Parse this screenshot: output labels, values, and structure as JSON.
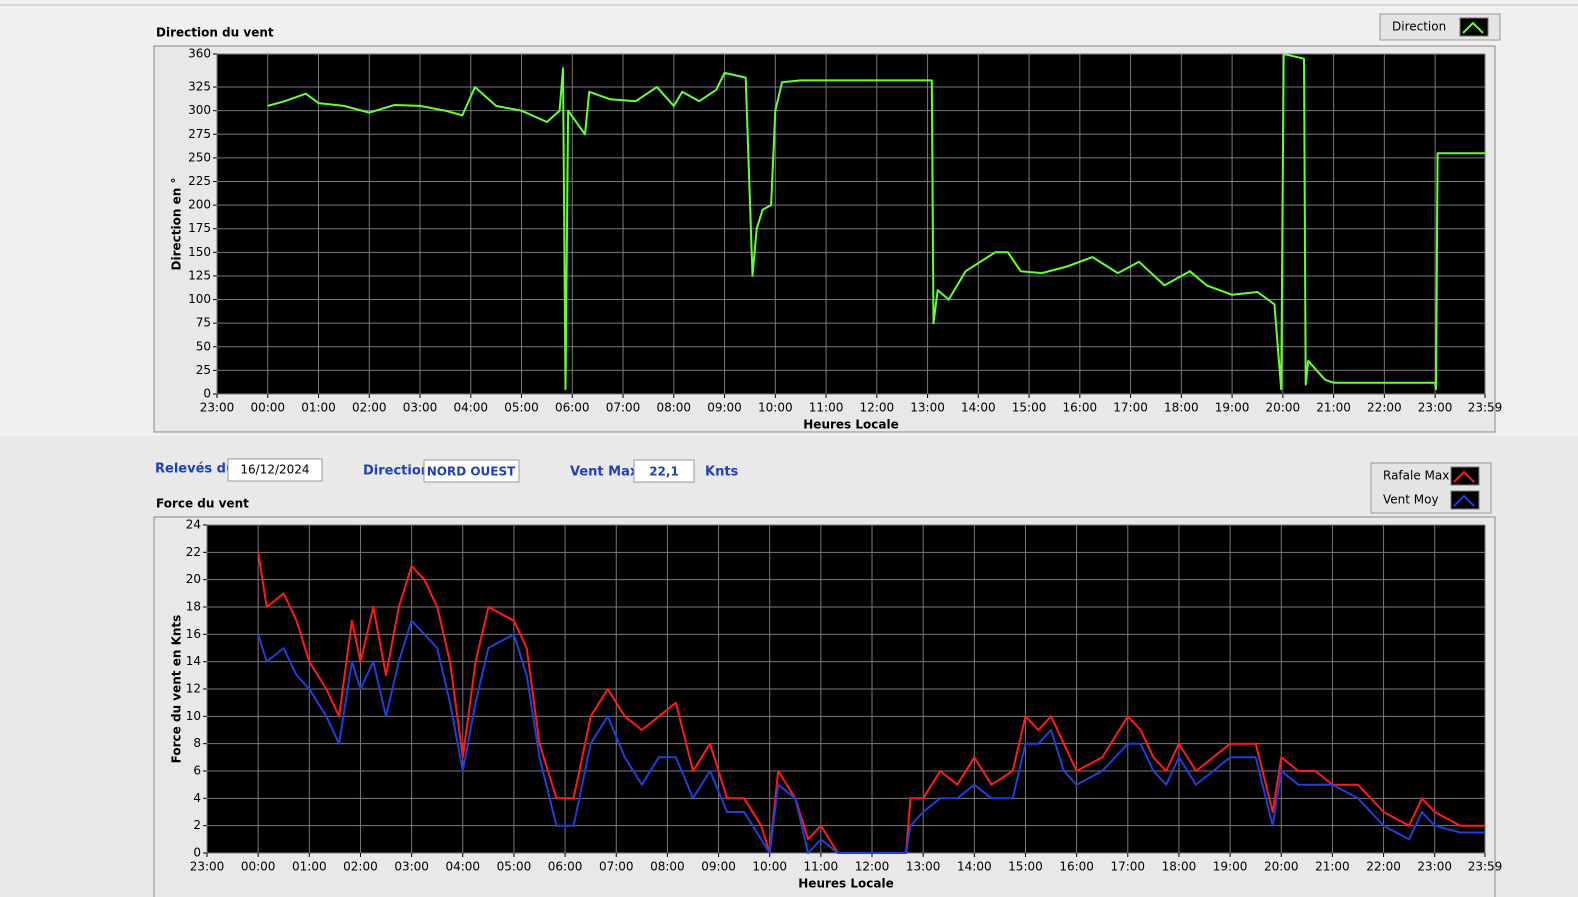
{
  "chart_data": [
    {
      "type": "line",
      "title": "Direction du vent",
      "y_label": "Direction en °",
      "x_label": "Heures Locale",
      "x": [
        1,
        1.333,
        1.75,
        2,
        2.5,
        3,
        3.5,
        4,
        4.5,
        4.833,
        5.083,
        5.5,
        6,
        6.5,
        6.75,
        6.817,
        6.867,
        6.917,
        7.25,
        7.333,
        7.75,
        8.25,
        8.667,
        9,
        9.167,
        9.5,
        9.833,
        10,
        10.417,
        10.55,
        10.633,
        10.75,
        10.917,
        11,
        11.133,
        11.5,
        14.083,
        14.117,
        14.2,
        14.417,
        14.75,
        15.333,
        15.583,
        15.833,
        16.25,
        16.75,
        17.25,
        17.75,
        18.167,
        18.667,
        19.167,
        19.5,
        20,
        20.5,
        20.833,
        20.967,
        21.017,
        21.417,
        21.45,
        21.5,
        21.833,
        22,
        24,
        24.017,
        24.05,
        24.983
      ],
      "series": [
        {
          "name": "Direction",
          "color": "#66ff33",
          "values": [
            305,
            310,
            318,
            308,
            305,
            298,
            306,
            305,
            300,
            295,
            325,
            305,
            300,
            288,
            300,
            345,
            5,
            300,
            275,
            320,
            312,
            310,
            325,
            305,
            320,
            310,
            322,
            340,
            335,
            125,
            175,
            195,
            200,
            300,
            330,
            332,
            332,
            75,
            110,
            100,
            130,
            150,
            150,
            130,
            128,
            135,
            145,
            128,
            140,
            115,
            130,
            115,
            105,
            108,
            95,
            5,
            360,
            355,
            10,
            35,
            15,
            12,
            12,
            5,
            255,
            255
          ]
        }
      ],
      "xlim": [
        0,
        24.983
      ],
      "xticks": [
        {
          "value": 0,
          "label": "23:00"
        },
        {
          "value": 1,
          "label": "00:00"
        },
        {
          "value": 2,
          "label": "01:00"
        },
        {
          "value": 3,
          "label": "02:00"
        },
        {
          "value": 4,
          "label": "03:00"
        },
        {
          "value": 5,
          "label": "04:00"
        },
        {
          "value": 6,
          "label": "05:00"
        },
        {
          "value": 7,
          "label": "06:00"
        },
        {
          "value": 8,
          "label": "07:00"
        },
        {
          "value": 9,
          "label": "08:00"
        },
        {
          "value": 10,
          "label": "09:00"
        },
        {
          "value": 11,
          "label": "10:00"
        },
        {
          "value": 12,
          "label": "11:00"
        },
        {
          "value": 13,
          "label": "12:00"
        },
        {
          "value": 14,
          "label": "13:00"
        },
        {
          "value": 15,
          "label": "14:00"
        },
        {
          "value": 16,
          "label": "15:00"
        },
        {
          "value": 17,
          "label": "16:00"
        },
        {
          "value": 18,
          "label": "17:00"
        },
        {
          "value": 19,
          "label": "18:00"
        },
        {
          "value": 20,
          "label": "19:00"
        },
        {
          "value": 21,
          "label": "20:00"
        },
        {
          "value": 22,
          "label": "21:00"
        },
        {
          "value": 23,
          "label": "22:00"
        },
        {
          "value": 24,
          "label": "23:00"
        },
        {
          "value": 24.983,
          "label": "23:59"
        }
      ],
      "ylim": [
        0,
        360
      ],
      "yticks": [
        0,
        25,
        50,
        75,
        100,
        125,
        150,
        175,
        200,
        225,
        250,
        275,
        300,
        325,
        360
      ],
      "grid": true
    },
    {
      "type": "line",
      "title": "Force du vent",
      "y_label": "Force du vent en Knts",
      "x_label": "Heures Locale",
      "x": [
        1,
        1.167,
        1.5,
        1.75,
        2,
        2.333,
        2.583,
        2.833,
        3,
        3.25,
        3.5,
        3.75,
        4,
        4.25,
        4.5,
        4.75,
        5,
        5.25,
        5.5,
        6,
        6.25,
        6.5,
        6.833,
        7.167,
        7.5,
        7.833,
        8.167,
        8.5,
        8.833,
        9.167,
        9.5,
        9.833,
        10.167,
        10.5,
        10.833,
        11,
        11.167,
        11.5,
        11.75,
        12,
        12.333,
        13.667,
        13.75,
        14,
        14.333,
        14.667,
        15,
        15.333,
        15.75,
        16,
        16.25,
        16.5,
        16.75,
        17,
        17.5,
        18,
        18.25,
        18.5,
        18.75,
        19,
        19.333,
        19.667,
        20,
        20.5,
        20.833,
        21,
        21.333,
        21.667,
        22,
        22.5,
        23,
        23.5,
        23.75,
        24,
        24.5,
        24.983
      ],
      "series": [
        {
          "name": "Rafale Max",
          "color": "#ff1a1a",
          "values": [
            22,
            18,
            19,
            17,
            14,
            12,
            10,
            17,
            14,
            18,
            13,
            18,
            21,
            20,
            18,
            14,
            7,
            14,
            18,
            17,
            15,
            8,
            4,
            4,
            10,
            12,
            10,
            9,
            10,
            11,
            6,
            8,
            4,
            4,
            2,
            0,
            6,
            4,
            1,
            2,
            0,
            0,
            4,
            4,
            6,
            5,
            7,
            5,
            6,
            10,
            9,
            10,
            8,
            6,
            7,
            10,
            9,
            7,
            6,
            8,
            6,
            7,
            8,
            8,
            3,
            7,
            6,
            6,
            5,
            5,
            3,
            2,
            4,
            3,
            2,
            2
          ]
        },
        {
          "name": "Vent Moy",
          "color": "#1f3fd6",
          "values": [
            16,
            14,
            15,
            13,
            12,
            10,
            8,
            14,
            12,
            14,
            10,
            14,
            17,
            16,
            15,
            11,
            6,
            11,
            15,
            16,
            13,
            7,
            2,
            2,
            8,
            10,
            7,
            5,
            7,
            7,
            4,
            6,
            3,
            3,
            1,
            0,
            5,
            4,
            0,
            1,
            0,
            0,
            2,
            3,
            4,
            4,
            5,
            4,
            4,
            8,
            8,
            9,
            6,
            5,
            6,
            8,
            8,
            6,
            5,
            7,
            5,
            6,
            7,
            7,
            2,
            6,
            5,
            5,
            5,
            4,
            2,
            1,
            3,
            2,
            1.5,
            1.5
          ]
        }
      ],
      "xlim": [
        0,
        24.983
      ],
      "xticks": [
        {
          "value": 0,
          "label": "23:00"
        },
        {
          "value": 1,
          "label": "00:00"
        },
        {
          "value": 2,
          "label": "01:00"
        },
        {
          "value": 3,
          "label": "02:00"
        },
        {
          "value": 4,
          "label": "03:00"
        },
        {
          "value": 5,
          "label": "04:00"
        },
        {
          "value": 6,
          "label": "05:00"
        },
        {
          "value": 7,
          "label": "06:00"
        },
        {
          "value": 8,
          "label": "07:00"
        },
        {
          "value": 9,
          "label": "08:00"
        },
        {
          "value": 10,
          "label": "09:00"
        },
        {
          "value": 11,
          "label": "10:00"
        },
        {
          "value": 12,
          "label": "11:00"
        },
        {
          "value": 13,
          "label": "12:00"
        },
        {
          "value": 14,
          "label": "13:00"
        },
        {
          "value": 15,
          "label": "14:00"
        },
        {
          "value": 16,
          "label": "15:00"
        },
        {
          "value": 17,
          "label": "16:00"
        },
        {
          "value": 18,
          "label": "17:00"
        },
        {
          "value": 19,
          "label": "18:00"
        },
        {
          "value": 20,
          "label": "19:00"
        },
        {
          "value": 21,
          "label": "20:00"
        },
        {
          "value": 22,
          "label": "21:00"
        },
        {
          "value": 23,
          "label": "22:00"
        },
        {
          "value": 24,
          "label": "23:00"
        },
        {
          "value": 24.983,
          "label": "23:59"
        }
      ],
      "ylim": [
        0,
        24
      ],
      "yticks": [
        0,
        2,
        4,
        6,
        8,
        10,
        12,
        14,
        16,
        18,
        20,
        22,
        24
      ],
      "grid": true
    }
  ],
  "fields": {
    "date_label": "Relevés du",
    "date": "16/12/2024",
    "direction_label": "Direction",
    "direction": "NORD OUEST",
    "vmax_label": "Vent Max",
    "vmax": "22,1",
    "vmax_unit": "Knts"
  }
}
